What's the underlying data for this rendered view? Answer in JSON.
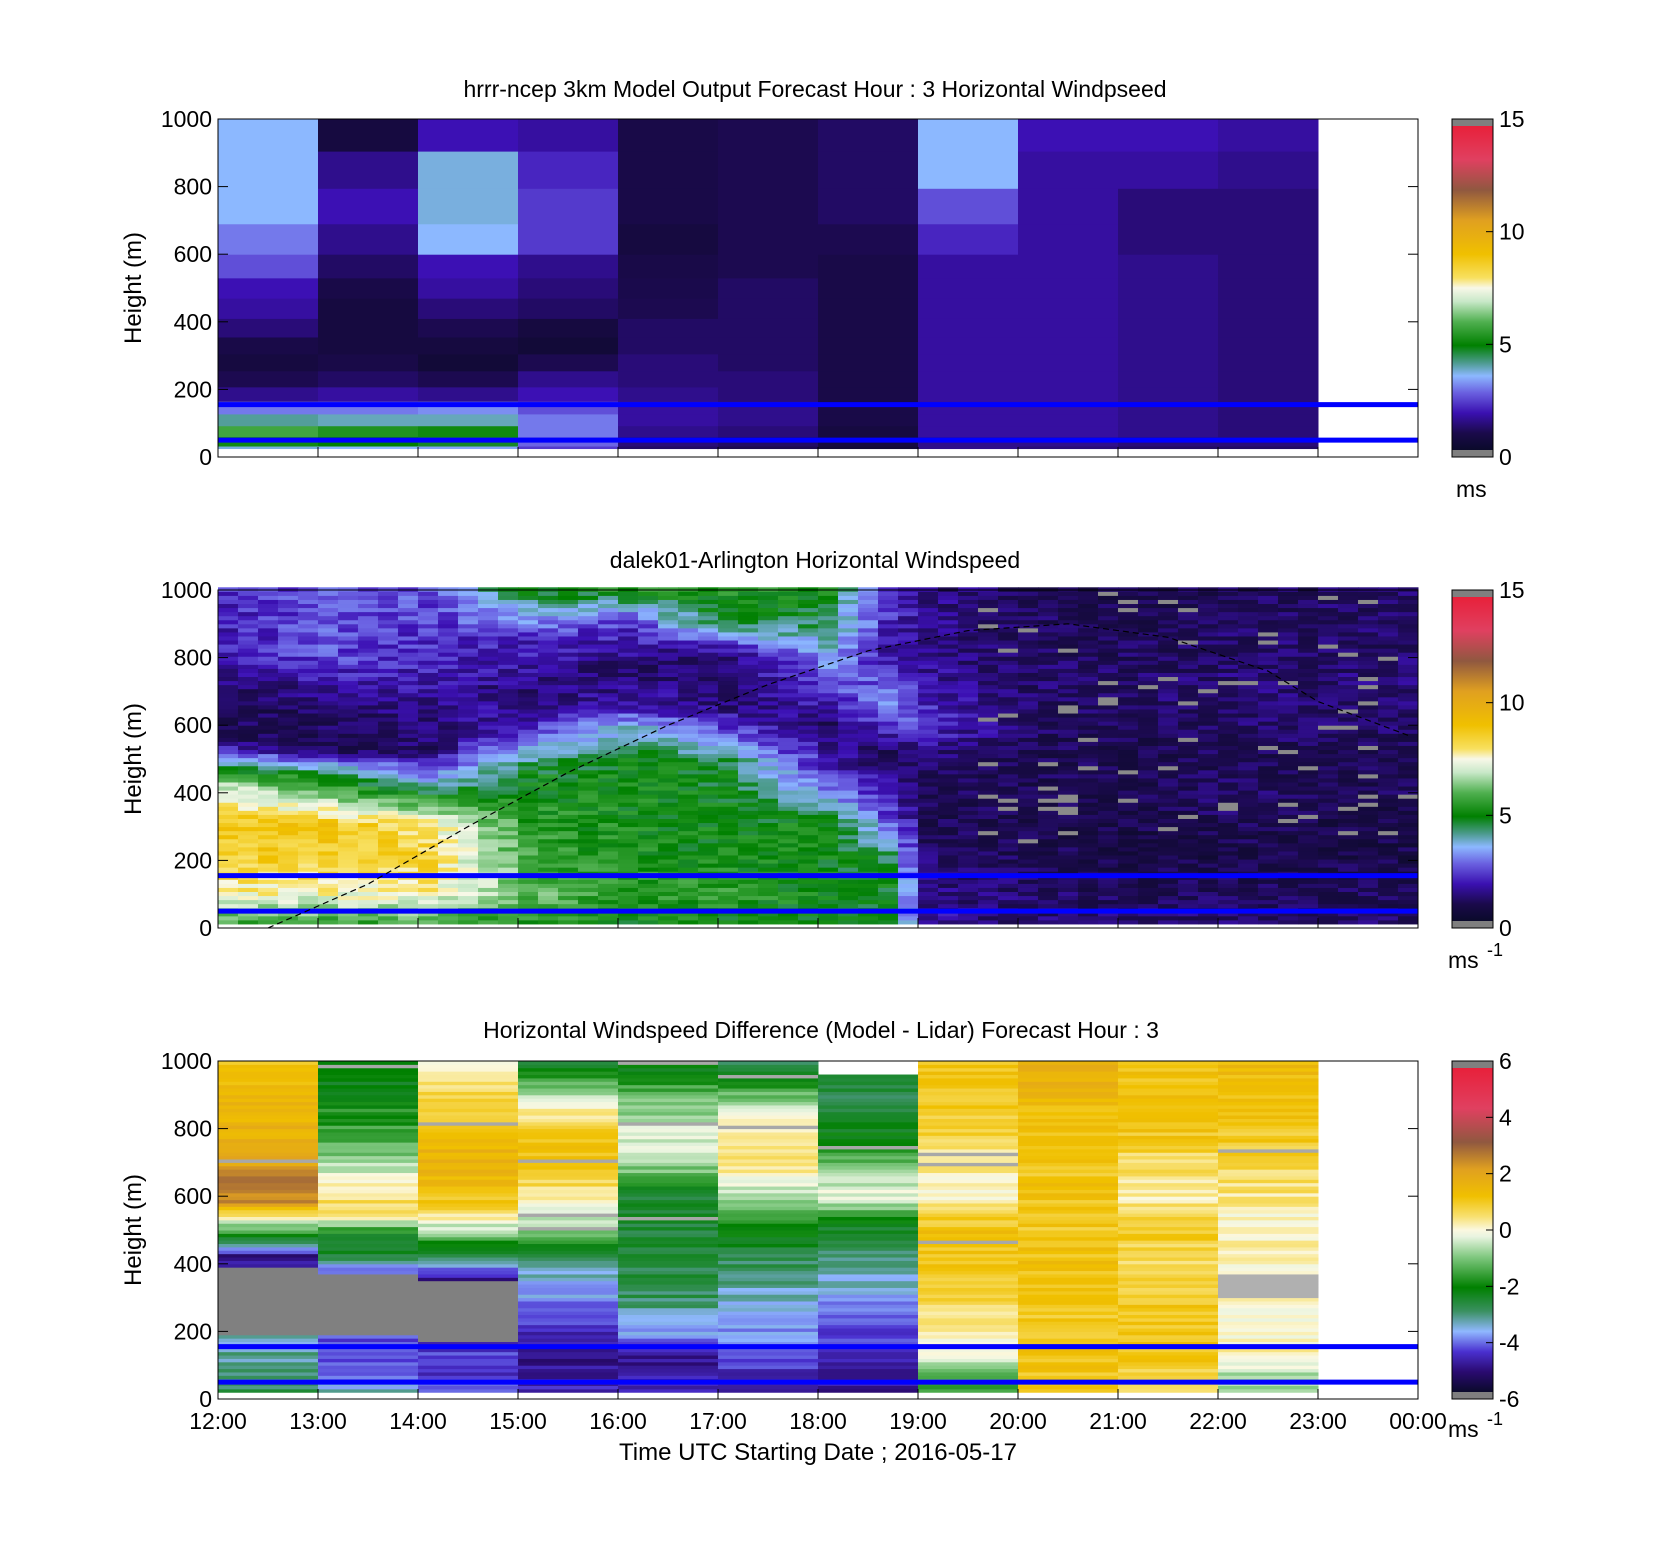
{
  "chart_data": [
    {
      "type": "heatmap",
      "title": "hrrr-ncep 3km Model Output   Forecast Hour : 3 Horizontal Windpseed",
      "ylabel": "Height (m)",
      "ylim": [
        0,
        1000
      ],
      "y_ticks": [
        "0",
        "200",
        "400",
        "600",
        "800",
        "1000"
      ],
      "x_ticks": [],
      "colorbar": {
        "min": 0,
        "max": 15,
        "ticks": [
          "0",
          "5",
          "10",
          "15"
        ],
        "unit_base": "ms",
        "unit_sup": ""
      },
      "reference_lines_m": [
        50,
        155
      ],
      "hours": [
        "12:00",
        "13:00",
        "14:00",
        "15:00",
        "16:00",
        "17:00",
        "18:00",
        "19:00",
        "20:00",
        "21:00",
        "22:00"
      ],
      "profile_heights_m": [
        20,
        45,
        75,
        110,
        145,
        185,
        230,
        280,
        330,
        380,
        440,
        500,
        560,
        640,
        740,
        850,
        960
      ],
      "windspeed_ms": [
        [
          3.8,
          5.2,
          5.8,
          4.2,
          3.0,
          1.6,
          1.0,
          0.6,
          0.8,
          1.4,
          1.8,
          2.0,
          2.6,
          3.0,
          3.6,
          3.6,
          3.6
        ],
        [
          3.6,
          5.0,
          5.4,
          4.0,
          3.0,
          1.8,
          1.2,
          0.8,
          0.6,
          0.6,
          0.6,
          0.8,
          1.2,
          1.6,
          2.0,
          1.6,
          0.6
        ],
        [
          3.4,
          4.8,
          5.2,
          4.0,
          3.2,
          1.6,
          1.0,
          0.4,
          0.6,
          1.0,
          1.4,
          1.8,
          2.0,
          3.6,
          3.8,
          3.8,
          2.0
        ],
        [
          2.4,
          2.8,
          3.0,
          3.0,
          2.6,
          2.0,
          1.6,
          1.0,
          0.4,
          0.6,
          1.2,
          1.4,
          1.6,
          2.4,
          2.4,
          2.2,
          1.8
        ],
        [
          1.2,
          1.4,
          1.6,
          1.8,
          1.8,
          1.6,
          1.4,
          1.4,
          1.2,
          1.2,
          1.0,
          0.9,
          0.8,
          0.6,
          0.8,
          0.8,
          0.8
        ],
        [
          1.0,
          1.2,
          1.4,
          1.6,
          1.6,
          1.4,
          1.4,
          1.2,
          1.2,
          1.2,
          1.2,
          1.2,
          1.0,
          1.0,
          1.0,
          1.0,
          1.0
        ],
        [
          0.4,
          0.6,
          0.6,
          0.8,
          0.8,
          0.8,
          0.8,
          0.8,
          0.8,
          0.8,
          0.8,
          0.8,
          0.8,
          1.0,
          1.2,
          1.2,
          1.2
        ],
        [
          1.6,
          1.6,
          1.8,
          1.8,
          1.8,
          1.8,
          1.8,
          1.8,
          1.8,
          1.8,
          1.8,
          1.8,
          1.8,
          2.2,
          2.6,
          3.6,
          3.6
        ],
        [
          1.4,
          1.6,
          1.8,
          1.8,
          1.8,
          1.8,
          1.8,
          1.8,
          1.8,
          1.8,
          1.8,
          1.8,
          1.8,
          1.8,
          1.8,
          1.8,
          2.0
        ],
        [
          1.2,
          1.4,
          1.6,
          1.6,
          1.6,
          1.6,
          1.6,
          1.6,
          1.6,
          1.6,
          1.6,
          1.6,
          1.6,
          1.4,
          1.4,
          1.8,
          2.0
        ],
        [
          1.2,
          1.4,
          1.4,
          1.4,
          1.4,
          1.4,
          1.4,
          1.4,
          1.4,
          1.4,
          1.4,
          1.4,
          1.4,
          1.4,
          1.4,
          1.6,
          1.8
        ]
      ]
    },
    {
      "type": "heatmap",
      "title": "dalek01-Arlington  Horizontal Windspeed",
      "ylabel": "Height (m)",
      "ylim": [
        0,
        1000
      ],
      "y_ticks": [
        "0",
        "200",
        "400",
        "600",
        "800",
        "1000"
      ],
      "x_ticks": [],
      "colorbar": {
        "min": 0,
        "max": 15,
        "ticks": [
          "0",
          "5",
          "10",
          "15"
        ],
        "unit_base": "ms",
        "unit_sup": "-1"
      },
      "reference_lines_m": [
        50,
        155
      ],
      "time_range_utc": [
        "12:00",
        "23:55"
      ],
      "boundary_layer_height_m": {
        "hours_utc": [
          12.5,
          13.5,
          14.5,
          15.5,
          16.5,
          17.5,
          18.5,
          19.5,
          20.5,
          21.5,
          22.5,
          23.0,
          23.9
        ],
        "heights_m": [
          0,
          130,
          300,
          460,
          600,
          720,
          820,
          880,
          900,
          860,
          760,
          670,
          570
        ]
      },
      "windspeed_profiles": [
        {
          "hour_utc": 12.0,
          "heights_m": [
            0,
            100,
            200,
            300,
            400,
            470,
            550,
            650,
            800,
            1000
          ],
          "ms": [
            5.5,
            7.8,
            8.5,
            8.8,
            7.5,
            4.5,
            1.2,
            0.8,
            2.0,
            2.2
          ]
        },
        {
          "hour_utc": 13.0,
          "heights_m": [
            0,
            100,
            200,
            300,
            400,
            450,
            520,
            650,
            800,
            1000
          ],
          "ms": [
            5.5,
            7.6,
            8.6,
            8.8,
            6.0,
            5.0,
            1.0,
            1.2,
            2.6,
            2.8
          ]
        },
        {
          "hour_utc": 14.0,
          "heights_m": [
            0,
            100,
            200,
            300,
            380,
            450,
            520,
            650,
            800,
            1000
          ],
          "ms": [
            5.5,
            7.8,
            8.4,
            8.0,
            5.4,
            3.0,
            1.2,
            1.6,
            2.2,
            2.6
          ]
        },
        {
          "hour_utc": 15.0,
          "heights_m": [
            0,
            100,
            200,
            350,
            450,
            530,
            600,
            700,
            850,
            1000
          ],
          "ms": [
            5.2,
            6.2,
            5.8,
            5.4,
            5.0,
            3.4,
            2.0,
            1.4,
            2.2,
            5.2
          ]
        },
        {
          "hour_utc": 16.0,
          "heights_m": [
            0,
            100,
            200,
            350,
            500,
            580,
            650,
            750,
            900,
            1000
          ],
          "ms": [
            5.0,
            5.6,
            5.2,
            5.2,
            5.0,
            4.0,
            2.0,
            1.2,
            2.4,
            5.5
          ]
        },
        {
          "hour_utc": 17.0,
          "heights_m": [
            0,
            100,
            200,
            350,
            480,
            560,
            650,
            800,
            900,
            1000
          ],
          "ms": [
            5.0,
            5.6,
            5.2,
            5.0,
            4.8,
            3.0,
            1.4,
            1.2,
            5.0,
            5.4
          ]
        },
        {
          "hour_utc": 18.0,
          "heights_m": [
            0,
            100,
            200,
            300,
            400,
            480,
            600,
            750,
            900,
            1000
          ],
          "ms": [
            5.0,
            5.0,
            5.0,
            5.2,
            3.2,
            2.0,
            1.2,
            3.0,
            4.5,
            5.2
          ]
        },
        {
          "hour_utc": 18.6,
          "heights_m": [
            0,
            100,
            200,
            300,
            400,
            520,
            650,
            800,
            900,
            1000
          ],
          "ms": [
            5.0,
            5.0,
            4.8,
            3.0,
            1.8,
            1.0,
            3.6,
            1.8,
            2.2,
            2.4
          ]
        },
        {
          "hour_utc": 19.0,
          "heights_m": [
            0,
            100,
            200,
            300,
            400,
            500,
            600,
            700,
            850,
            1000
          ],
          "ms": [
            1.8,
            1.6,
            1.2,
            1.0,
            1.0,
            1.4,
            2.4,
            1.8,
            1.6,
            1.6
          ]
        },
        {
          "hour_utc": 20.0,
          "heights_m": [
            0,
            100,
            200,
            300,
            400,
            500,
            600,
            700,
            850,
            1000
          ],
          "ms": [
            1.4,
            1.2,
            1.0,
            0.8,
            1.0,
            1.0,
            1.2,
            1.2,
            1.2,
            1.0
          ]
        },
        {
          "hour_utc": 21.0,
          "heights_m": [
            0,
            100,
            200,
            300,
            400,
            500,
            600,
            700,
            850,
            1000
          ],
          "ms": [
            1.4,
            1.0,
            0.8,
            0.8,
            1.0,
            0.8,
            1.0,
            1.2,
            1.0,
            0.8
          ]
        },
        {
          "hour_utc": 22.0,
          "heights_m": [
            0,
            100,
            200,
            300,
            400,
            500,
            600,
            700,
            850,
            1000
          ],
          "ms": [
            1.4,
            1.0,
            0.8,
            1.0,
            1.2,
            1.0,
            1.2,
            1.4,
            1.2,
            1.0
          ]
        },
        {
          "hour_utc": 23.0,
          "heights_m": [
            0,
            100,
            200,
            300,
            400,
            500,
            600,
            700,
            850,
            1000
          ],
          "ms": [
            1.2,
            1.0,
            0.8,
            0.8,
            1.0,
            1.0,
            1.2,
            1.4,
            1.2,
            1.2
          ]
        }
      ]
    },
    {
      "type": "heatmap",
      "title": "Horizontal Windspeed Difference (Model - Lidar) Forecast Hour : 3",
      "ylabel": "Height (m)",
      "xlabel": "Time UTC  Starting Date ; 2016-05-17",
      "ylim": [
        0,
        1000
      ],
      "y_ticks": [
        "0",
        "200",
        "400",
        "600",
        "800",
        "1000"
      ],
      "x_ticks": [
        "12:00",
        "13:00",
        "14:00",
        "15:00",
        "16:00",
        "17:00",
        "18:00",
        "19:00",
        "20:00",
        "21:00",
        "22:00",
        "23:00",
        "00:00"
      ],
      "colorbar": {
        "min": -6,
        "max": 6,
        "ticks": [
          "-6",
          "-4",
          "-2",
          "0",
          "2",
          "4",
          "6"
        ],
        "unit_base": "ms",
        "unit_sup": "-1"
      },
      "reference_lines_m": [
        50,
        155
      ],
      "hours": [
        "12:00",
        "13:00",
        "14:00",
        "15:00",
        "16:00",
        "17:00",
        "18:00",
        "19:00",
        "20:00",
        "21:00",
        "22:00"
      ],
      "top_of_data_m": [
        1000,
        1000,
        1000,
        1000,
        1000,
        1000,
        960,
        1000,
        1000,
        1000,
        1000
      ],
      "missing_layers_m": [
        [
          190,
          390
        ],
        [
          190,
          370
        ],
        [
          170,
          350
        ],
        [],
        [],
        [],
        [],
        [],
        [],
        [],
        [
          300,
          370
        ]
      ],
      "difference_profiles": [
        {
          "heights_m": [
            0,
            60,
            150,
            420,
            460,
            520,
            580,
            650,
            700,
            800,
            1000
          ],
          "ms": [
            -2.5,
            -3.0,
            -3.2,
            -5.0,
            -2.8,
            -0.5,
            2.4,
            2.6,
            1.8,
            1.6,
            1.2
          ]
        },
        {
          "heights_m": [
            0,
            60,
            150,
            350,
            420,
            480,
            550,
            620,
            700,
            800,
            1000
          ],
          "ms": [
            -3.0,
            -4.0,
            -4.2,
            -5.0,
            -2.5,
            -2.2,
            0.8,
            0.2,
            -0.8,
            -1.6,
            -2.4
          ]
        },
        {
          "heights_m": [
            0,
            60,
            150,
            350,
            420,
            500,
            550,
            620,
            700,
            800,
            1000
          ],
          "ms": [
            -3.4,
            -4.4,
            -4.4,
            -5.0,
            -2.8,
            -0.6,
            0.6,
            1.4,
            1.6,
            1.2,
            0.2
          ]
        },
        {
          "heights_m": [
            0,
            60,
            120,
            200,
            300,
            400,
            500,
            600,
            700,
            800,
            1000
          ],
          "ms": [
            -4.5,
            -4.8,
            -5.0,
            -4.6,
            -3.8,
            -3.0,
            -1.0,
            0.4,
            1.2,
            1.0,
            -2.6
          ]
        },
        {
          "heights_m": [
            0,
            60,
            120,
            200,
            300,
            400,
            500,
            600,
            700,
            800,
            1000
          ],
          "ms": [
            -4.6,
            -4.8,
            -5.0,
            -3.6,
            -2.8,
            -2.6,
            -2.6,
            -2.4,
            -0.6,
            -0.4,
            -2.4
          ]
        },
        {
          "heights_m": [
            0,
            60,
            120,
            200,
            300,
            400,
            500,
            600,
            700,
            800,
            1000
          ],
          "ms": [
            -4.8,
            -4.6,
            -4.2,
            -3.8,
            -3.4,
            -2.8,
            -2.0,
            -0.8,
            0.6,
            0.2,
            -2.8
          ]
        },
        {
          "heights_m": [
            0,
            60,
            120,
            200,
            300,
            400,
            500,
            600,
            700,
            800,
            960
          ],
          "ms": [
            -5.0,
            -4.8,
            -4.6,
            -4.2,
            -3.6,
            -3.2,
            -2.4,
            -0.2,
            -1.2,
            -2.4,
            -2.8
          ]
        },
        {
          "heights_m": [
            0,
            60,
            120,
            200,
            300,
            400,
            500,
            600,
            700,
            800,
            1000
          ],
          "ms": [
            -1.6,
            -1.2,
            -0.4,
            0.2,
            0.8,
            1.0,
            1.2,
            0.0,
            0.4,
            0.8,
            1.2
          ]
        },
        {
          "heights_m": [
            0,
            60,
            120,
            200,
            300,
            400,
            500,
            600,
            700,
            800,
            1000
          ],
          "ms": [
            0.8,
            1.0,
            1.2,
            1.0,
            1.2,
            1.2,
            1.0,
            1.2,
            1.0,
            1.2,
            1.8
          ]
        },
        {
          "heights_m": [
            0,
            60,
            120,
            200,
            300,
            400,
            500,
            600,
            700,
            800,
            1000
          ],
          "ms": [
            0.6,
            0.8,
            1.0,
            1.0,
            1.0,
            0.6,
            1.0,
            0.2,
            0.6,
            1.2,
            1.2
          ]
        },
        {
          "heights_m": [
            0,
            60,
            120,
            200,
            300,
            400,
            500,
            600,
            700,
            800,
            1000
          ],
          "ms": [
            -1.0,
            -0.8,
            0.2,
            -0.2,
            0.0,
            0.2,
            0.0,
            0.4,
            0.8,
            1.0,
            1.4
          ]
        }
      ]
    }
  ]
}
